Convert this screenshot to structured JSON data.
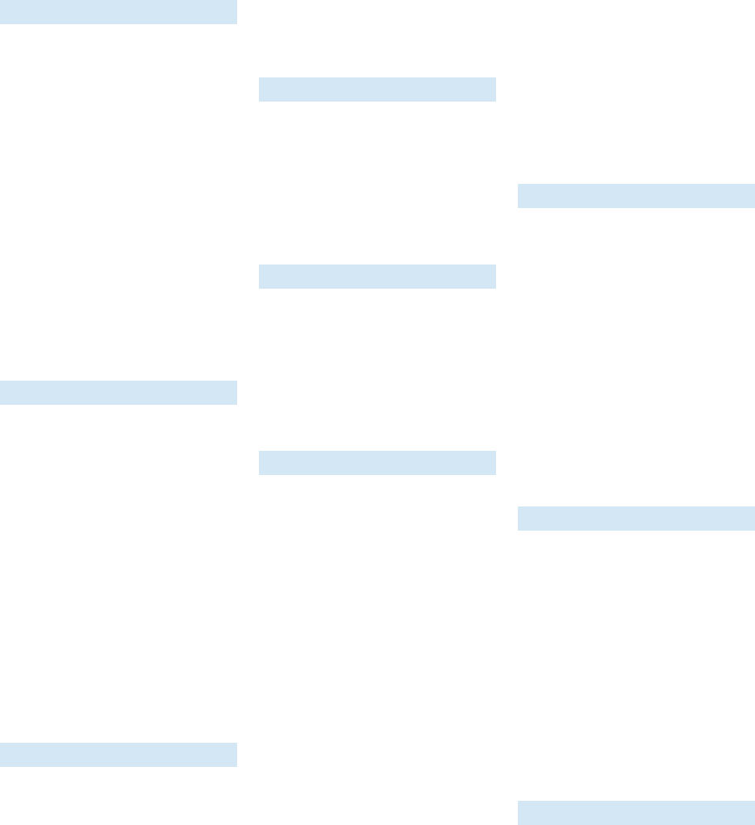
{
  "colors": {
    "background": "#ffffff",
    "placeholder_bar": "#d3e7f5"
  },
  "columns": [
    {
      "name": "column-1",
      "bar_count": 3
    },
    {
      "name": "column-2",
      "bar_count": 3
    },
    {
      "name": "column-3",
      "bar_count": 3
    }
  ]
}
